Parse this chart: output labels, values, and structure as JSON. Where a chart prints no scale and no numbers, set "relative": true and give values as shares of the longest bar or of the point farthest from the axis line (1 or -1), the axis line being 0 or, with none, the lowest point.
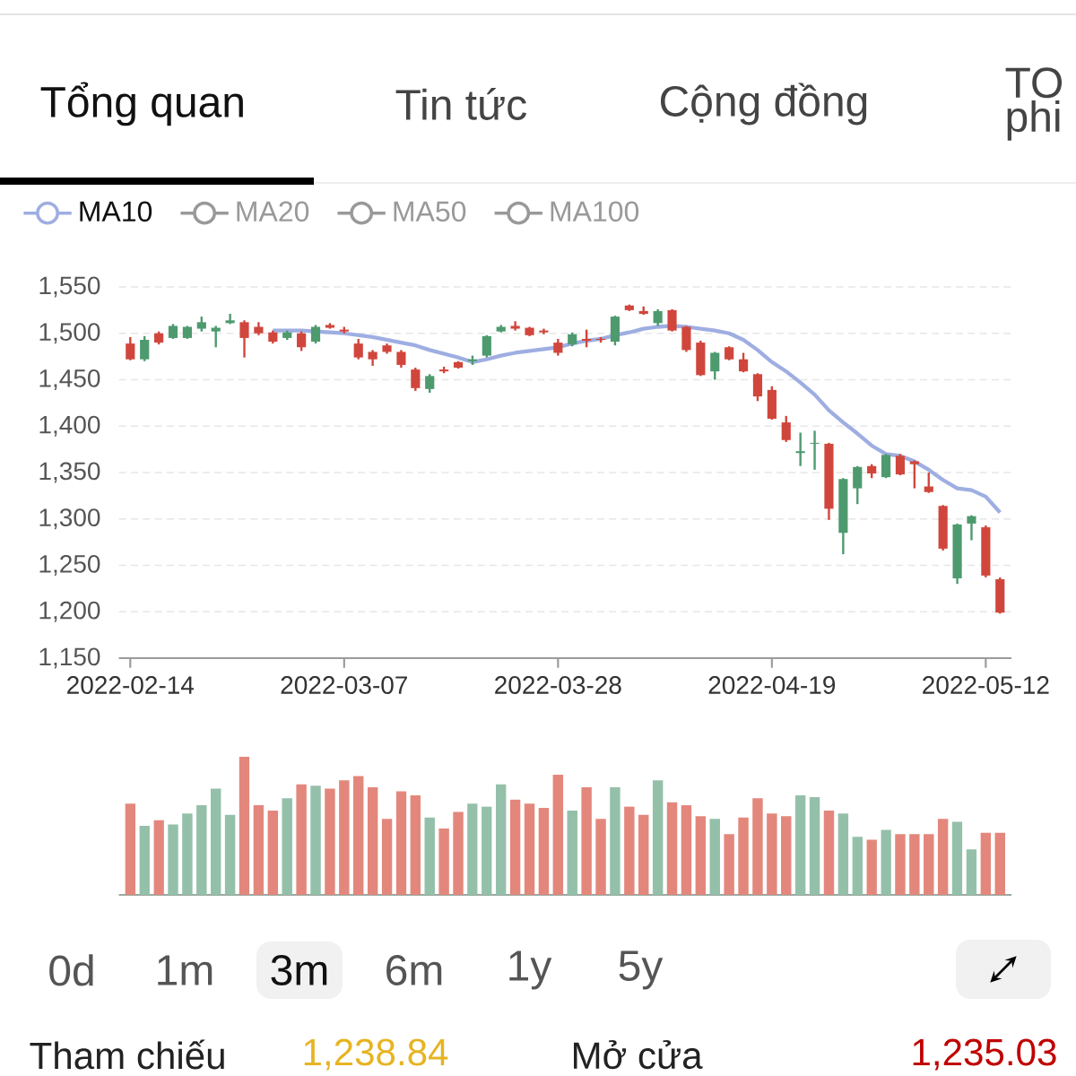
{
  "chart_data": [
    {
      "type": "other",
      "annotations": [
        "Tổng quan",
        "Tin tức",
        "Cộng đồng",
        "TO phi"
      ]
    },
    {
      "type": "candlestick",
      "categories": [
        "2022-02-14",
        null,
        null,
        null,
        null,
        null,
        null,
        null,
        null,
        null,
        null,
        null,
        null,
        null,
        null,
        "2022-03-07",
        null,
        null,
        null,
        null,
        null,
        null,
        null,
        null,
        null,
        null,
        null,
        null,
        null,
        null,
        "2022-03-28",
        null,
        null,
        null,
        null,
        null,
        null,
        null,
        null,
        null,
        null,
        null,
        null,
        null,
        null,
        "2022-04-19",
        null,
        null,
        null,
        null,
        null,
        null,
        null,
        null,
        null,
        null,
        null,
        null,
        null,
        null,
        "2022-05-12",
        null
      ],
      "ohlc": [
        [
          1489,
          1496,
          1471,
          1472
        ],
        [
          1472,
          1497,
          1470,
          1493
        ],
        [
          1500,
          1502,
          1488,
          1490
        ],
        [
          1495,
          1510,
          1494,
          1508
        ],
        [
          1495,
          1508,
          1494,
          1507
        ],
        [
          1505,
          1518,
          1502,
          1512
        ],
        [
          1502,
          1508,
          1485,
          1506
        ],
        [
          1511,
          1521,
          1510,
          1514
        ],
        [
          1512,
          1514,
          1474,
          1495
        ],
        [
          1507,
          1512,
          1498,
          1500
        ],
        [
          1501,
          1503,
          1489,
          1491
        ],
        [
          1495,
          1503,
          1493,
          1501
        ],
        [
          1500,
          1502,
          1481,
          1485
        ],
        [
          1491,
          1509,
          1489,
          1507
        ],
        [
          1509,
          1511,
          1505,
          1506
        ],
        [
          1504,
          1507,
          1500,
          1502
        ],
        [
          1489,
          1494,
          1472,
          1474
        ],
        [
          1480,
          1482,
          1465,
          1472
        ],
        [
          1487,
          1489,
          1478,
          1480
        ],
        [
          1480,
          1482,
          1463,
          1466
        ],
        [
          1461,
          1463,
          1438,
          1441
        ],
        [
          1440,
          1456,
          1436,
          1454
        ],
        [
          1461,
          1464,
          1457,
          1459
        ],
        [
          1469,
          1470,
          1462,
          1463
        ],
        [
          1470,
          1476,
          1466,
          1472
        ],
        [
          1476,
          1498,
          1474,
          1497
        ],
        [
          1502,
          1509,
          1501,
          1507
        ],
        [
          1508,
          1513,
          1503,
          1505
        ],
        [
          1506,
          1507,
          1497,
          1498
        ],
        [
          1503,
          1505,
          1499,
          1501
        ],
        [
          1490,
          1494,
          1476,
          1479
        ],
        [
          1488,
          1501,
          1486,
          1499
        ],
        [
          1494,
          1504,
          1485,
          1492
        ],
        [
          1494,
          1496,
          1490,
          1493
        ],
        [
          1491,
          1519,
          1487,
          1518
        ],
        [
          1530,
          1531,
          1524,
          1525
        ],
        [
          1524,
          1529,
          1520,
          1521
        ],
        [
          1511,
          1526,
          1508,
          1524
        ],
        [
          1525,
          1526,
          1502,
          1503
        ],
        [
          1507,
          1508,
          1480,
          1482
        ],
        [
          1490,
          1492,
          1454,
          1455
        ],
        [
          1459,
          1480,
          1450,
          1479
        ],
        [
          1485,
          1486,
          1471,
          1472
        ],
        [
          1472,
          1479,
          1458,
          1459
        ],
        [
          1456,
          1457,
          1427,
          1432
        ],
        [
          1439,
          1443,
          1407,
          1408
        ],
        [
          1404,
          1411,
          1383,
          1385
        ],
        [
          1371,
          1393,
          1357,
          1373
        ],
        [
          1381,
          1395,
          1353,
          1382
        ],
        [
          1381,
          1382,
          1299,
          1311
        ],
        [
          1285,
          1344,
          1262,
          1343
        ],
        [
          1333,
          1357,
          1316,
          1356
        ],
        [
          1357,
          1359,
          1344,
          1349
        ],
        [
          1345,
          1370,
          1344,
          1369
        ],
        [
          1368,
          1370,
          1347,
          1348
        ],
        [
          1362,
          1363,
          1333,
          1359
        ],
        [
          1335,
          1350,
          1328,
          1329
        ],
        [
          1314,
          1315,
          1266,
          1268
        ],
        [
          1236,
          1295,
          1230,
          1294
        ],
        [
          1295,
          1304,
          1277,
          1303
        ],
        [
          1291,
          1293,
          1237,
          1239
        ],
        [
          1235,
          1237,
          1198,
          1199
        ]
      ],
      "colors": [
        "#d1463c",
        "#4e9a6f",
        "#d1463c",
        "#4e9a6f",
        "#4e9a6f",
        "#4e9a6f",
        "#4e9a6f",
        "#4e9a6f",
        "#d1463c",
        "#d1463c",
        "#d1463c",
        "#4e9a6f",
        "#d1463c",
        "#4e9a6f",
        "#d1463c",
        "#d1463c",
        "#d1463c",
        "#d1463c",
        "#d1463c",
        "#d1463c",
        "#d1463c",
        "#4e9a6f",
        "#d1463c",
        "#d1463c",
        "#4e9a6f",
        "#4e9a6f",
        "#4e9a6f",
        "#d1463c",
        "#d1463c",
        "#d1463c",
        "#d1463c",
        "#4e9a6f",
        "#d1463c",
        "#d1463c",
        "#4e9a6f",
        "#d1463c",
        "#d1463c",
        "#4e9a6f",
        "#d1463c",
        "#d1463c",
        "#d1463c",
        "#4e9a6f",
        "#d1463c",
        "#d1463c",
        "#d1463c",
        "#d1463c",
        "#d1463c",
        "#4e9a6f",
        "#4e9a6f",
        "#d1463c",
        "#4e9a6f",
        "#4e9a6f",
        "#d1463c",
        "#4e9a6f",
        "#d1463c",
        "#d1463c",
        "#d1463c",
        "#d1463c",
        "#4e9a6f",
        "#4e9a6f",
        "#d1463c",
        "#d1463c"
      ],
      "series": [
        {
          "name": "MA10",
          "type": "line",
          "color": "#9eaee2",
          "values": [
            null,
            null,
            null,
            null,
            null,
            null,
            null,
            null,
            null,
            null,
            1503,
            1503,
            1503,
            1502,
            1501,
            1500,
            1498,
            1496,
            1493,
            1490,
            1487,
            1482,
            1478,
            1474,
            1469,
            1472,
            1476,
            1479,
            1481,
            1483,
            1485,
            1489,
            1492,
            1494,
            1498,
            1501,
            1505,
            1507,
            1508,
            1507,
            1505,
            1503,
            1500,
            1493,
            1482,
            1469,
            1459,
            1447,
            1434,
            1417,
            1404,
            1392,
            1379,
            1370,
            1368,
            1362,
            1353,
            1342,
            1333,
            1331,
            1324,
            1307
          ]
        },
        {
          "name": "MA20",
          "type": "line",
          "color": "#999999",
          "values": [
            null,
            null,
            null,
            null,
            null,
            null,
            null,
            null,
            null,
            null,
            null,
            null,
            null,
            null,
            null,
            null,
            null,
            null,
            null,
            null,
            null,
            null,
            null,
            null,
            null,
            null,
            null,
            null,
            null,
            null,
            null,
            null,
            null,
            null,
            null,
            null,
            null,
            null,
            null,
            null,
            null,
            null,
            null,
            null,
            null,
            null,
            null,
            null,
            null,
            null,
            null,
            null,
            null,
            null,
            null,
            null,
            null,
            null,
            null,
            null,
            null,
            null
          ]
        },
        {
          "name": "MA50",
          "type": "line",
          "color": "#999999",
          "values": [
            null,
            null,
            null,
            null,
            null,
            null,
            null,
            null,
            null,
            null,
            null,
            null,
            null,
            null,
            null,
            null,
            null,
            null,
            null,
            null,
            null,
            null,
            null,
            null,
            null,
            null,
            null,
            null,
            null,
            null,
            null,
            null,
            null,
            null,
            null,
            null,
            null,
            null,
            null,
            null,
            null,
            null,
            null,
            null,
            null,
            null,
            null,
            null,
            null,
            null,
            null,
            null,
            null,
            null,
            null,
            null,
            null,
            null,
            null,
            null,
            null,
            null
          ]
        },
        {
          "name": "MA100",
          "type": "line",
          "color": "#999999",
          "values": [
            null,
            null,
            null,
            null,
            null,
            null,
            null,
            null,
            null,
            null,
            null,
            null,
            null,
            null,
            null,
            null,
            null,
            null,
            null,
            null,
            null,
            null,
            null,
            null,
            null,
            null,
            null,
            null,
            null,
            null,
            null,
            null,
            null,
            null,
            null,
            null,
            null,
            null,
            null,
            null,
            null,
            null,
            null,
            null,
            null,
            null,
            null,
            null,
            null,
            null,
            null,
            null,
            null,
            null,
            null,
            null,
            null,
            null,
            null,
            null,
            null,
            null
          ]
        }
      ],
      "ylim": [
        1150,
        1550
      ],
      "yticks": [
        {
          "value": 1150,
          "label": "1,150"
        },
        {
          "value": 1200,
          "label": "1,200"
        },
        {
          "value": 1250,
          "label": "1,250"
        },
        {
          "value": 1300,
          "label": "1,300"
        },
        {
          "value": 1350,
          "label": "1,350"
        },
        {
          "value": 1400,
          "label": "1,400"
        },
        {
          "value": 1450,
          "label": "1,450"
        },
        {
          "value": 1500,
          "label": "1,500"
        },
        {
          "value": 1550,
          "label": "1,550"
        }
      ],
      "grid": "y",
      "legend": "top left"
    },
    {
      "type": "bar",
      "relative": true,
      "categories": [
        null,
        null,
        null,
        null,
        null,
        null,
        null,
        null,
        null,
        null,
        null,
        null,
        null,
        null,
        null,
        null,
        null,
        null,
        null,
        null,
        null,
        null,
        null,
        null,
        null,
        null,
        null,
        null,
        null,
        null,
        null,
        null,
        null,
        null,
        null,
        null,
        null,
        null,
        null,
        null,
        null,
        null,
        null,
        null,
        null,
        null,
        null,
        null,
        null,
        null,
        null,
        null,
        null,
        null,
        null,
        null,
        null,
        null,
        null,
        null,
        null,
        null
      ],
      "values": [
        0.66,
        0.5,
        0.54,
        0.51,
        0.59,
        0.65,
        0.77,
        0.58,
        1,
        0.65,
        0.61,
        0.7,
        0.8,
        0.79,
        0.77,
        0.83,
        0.86,
        0.78,
        0.55,
        0.75,
        0.72,
        0.56,
        0.48,
        0.6,
        0.66,
        0.64,
        0.8,
        0.69,
        0.66,
        0.63,
        0.87,
        0.61,
        0.78,
        0.55,
        0.78,
        0.64,
        0.58,
        0.83,
        0.67,
        0.65,
        0.57,
        0.55,
        0.44,
        0.56,
        0.7,
        0.59,
        0.57,
        0.72,
        0.71,
        0.61,
        0.59,
        0.42,
        0.4,
        0.47,
        0.44,
        0.44,
        0.44,
        0.55,
        0.53,
        0.33,
        0.45,
        0.45
      ],
      "colors": [
        "#e3877c",
        "#94c0aa",
        "#e3877c",
        "#94c0aa",
        "#94c0aa",
        "#94c0aa",
        "#94c0aa",
        "#94c0aa",
        "#e3877c",
        "#e3877c",
        "#e3877c",
        "#94c0aa",
        "#e3877c",
        "#94c0aa",
        "#e3877c",
        "#e3877c",
        "#e3877c",
        "#e3877c",
        "#e3877c",
        "#e3877c",
        "#e3877c",
        "#94c0aa",
        "#e3877c",
        "#e3877c",
        "#94c0aa",
        "#94c0aa",
        "#94c0aa",
        "#e3877c",
        "#e3877c",
        "#e3877c",
        "#e3877c",
        "#94c0aa",
        "#e3877c",
        "#e3877c",
        "#94c0aa",
        "#e3877c",
        "#e3877c",
        "#94c0aa",
        "#e3877c",
        "#e3877c",
        "#e3877c",
        "#94c0aa",
        "#e3877c",
        "#e3877c",
        "#e3877c",
        "#e3877c",
        "#e3877c",
        "#94c0aa",
        "#94c0aa",
        "#e3877c",
        "#94c0aa",
        "#94c0aa",
        "#e3877c",
        "#94c0aa",
        "#e3877c",
        "#e3877c",
        "#e3877c",
        "#e3877c",
        "#94c0aa",
        "#94c0aa",
        "#e3877c",
        "#e3877c"
      ]
    },
    {
      "type": "other",
      "annotations": [
        "0d",
        "1m",
        "3m",
        "6m",
        "1y",
        "5y",
        "Tham chiếu",
        "1,238.84",
        "Mở cửa",
        "1,235.03"
      ]
    }
  ]
}
